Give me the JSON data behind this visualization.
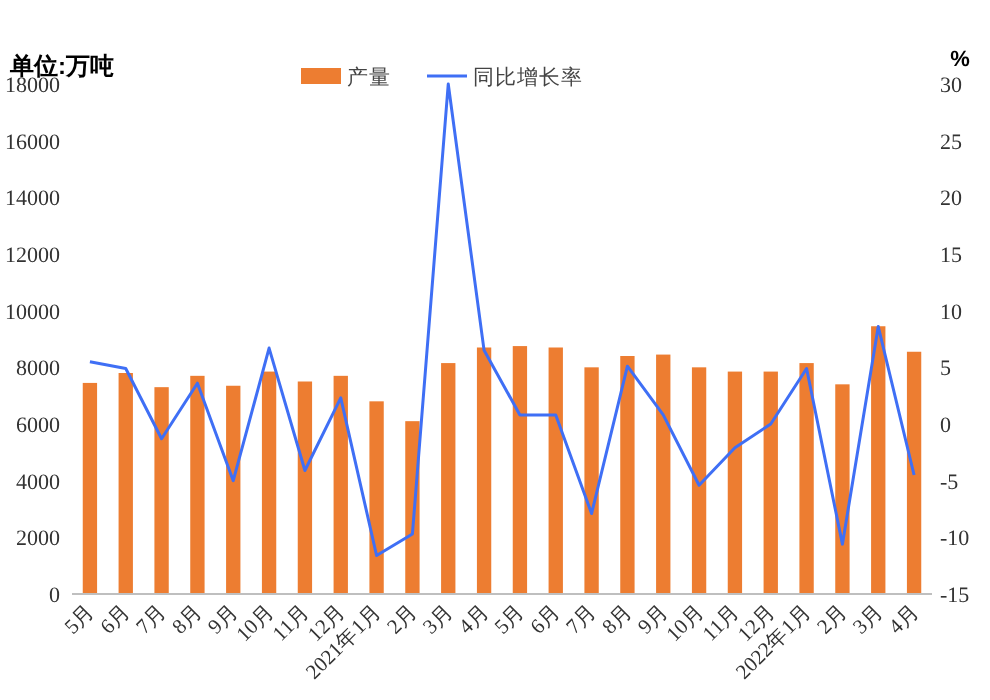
{
  "chart_data": {
    "type": "bar",
    "ylabel": "单位:万吨",
    "y2label": "%",
    "categories": [
      "5月",
      "6月",
      "7月",
      "8月",
      "9月",
      "10月",
      "11月",
      "12月",
      "2021年1月",
      "2月",
      "3月",
      "4月",
      "5月",
      "6月",
      "7月",
      "8月",
      "9月",
      "10月",
      "11月",
      "12月",
      "2022年1月",
      "2月",
      "3月",
      "4月"
    ],
    "series": [
      {
        "name": "产量",
        "color": "#ed7d31",
        "values": [
          7450,
          7800,
          7300,
          7700,
          7350,
          7850,
          7500,
          7700,
          6800,
          6100,
          8150,
          8700,
          8750,
          8700,
          8000,
          8400,
          8450,
          8000,
          7850,
          7850,
          8150,
          7400,
          9450,
          8550
        ]
      },
      {
        "name": "同比增长率",
        "type": "line",
        "axis": "y2",
        "color": "#3f6ff5",
        "values": [
          5.5,
          4.9,
          -1.3,
          3.6,
          -5.0,
          6.7,
          -4.1,
          2.3,
          -11.6,
          -9.7,
          30,
          6.5,
          0.8,
          0.8,
          -7.9,
          5.1,
          0.8,
          -5.4,
          -2.1,
          0.0,
          4.9,
          -10.6,
          8.6,
          -4.5
        ]
      }
    ],
    "ylim": [
      0,
      18000
    ],
    "yticks": [
      0,
      2000,
      4000,
      6000,
      8000,
      10000,
      12000,
      14000,
      16000,
      18000
    ],
    "y2lim": [
      -15,
      30
    ],
    "y2ticks": [
      -15,
      -10,
      -5,
      0,
      5,
      10,
      15,
      20,
      25,
      30
    ],
    "legend": "top",
    "grid": false
  }
}
